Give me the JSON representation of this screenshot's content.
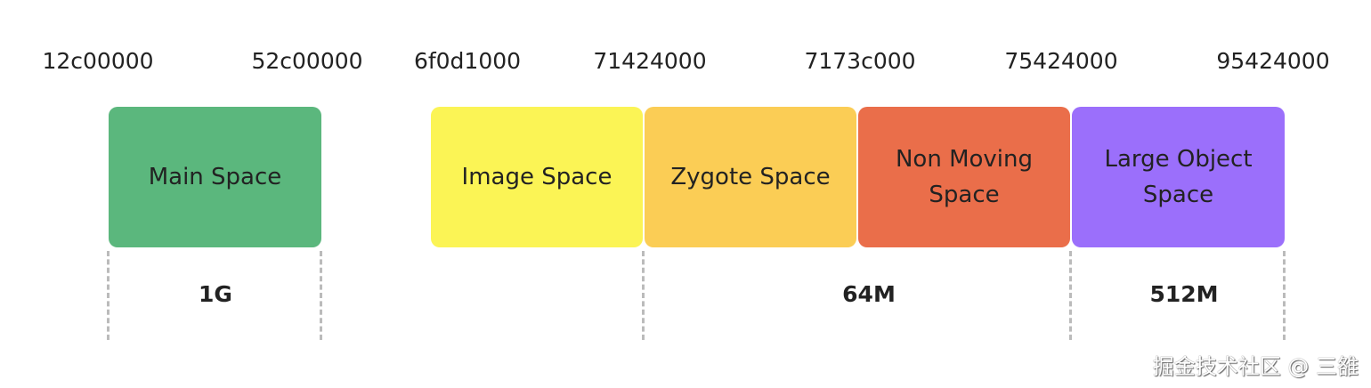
{
  "addresses": [
    "12c00000",
    "52c00000",
    "6f0d1000",
    "71424000",
    "7173c000",
    "75424000",
    "95424000"
  ],
  "spaces": [
    {
      "label": "Main Space",
      "color": "#5bb77d"
    },
    {
      "label": "Image Space",
      "color": "#fbf455"
    },
    {
      "label": "Zygote Space",
      "color": "#fbcd55"
    },
    {
      "label": "Non Moving Space",
      "color": "#ea6e4a"
    },
    {
      "label": "Large Object Space",
      "color": "#9b6ffb"
    }
  ],
  "sizes": [
    "1G",
    "64M",
    "512M"
  ],
  "watermark": "掘金技术社区 @ 三雒"
}
